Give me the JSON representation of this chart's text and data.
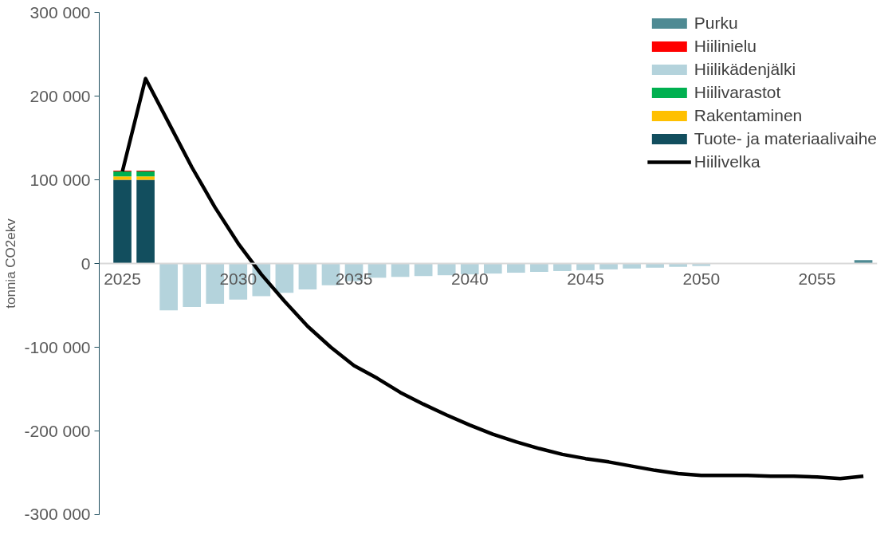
{
  "chart_data": {
    "type": "bar",
    "stacked": true,
    "ylabel": "tonnia CO2ekv",
    "categories": [
      "2025",
      null,
      null,
      null,
      null,
      "2030",
      null,
      null,
      null,
      null,
      "2035",
      null,
      null,
      null,
      null,
      "2040",
      null,
      null,
      null,
      null,
      "2045",
      null,
      null,
      null,
      null,
      "2050",
      null,
      null,
      null,
      null,
      "2055",
      null,
      null
    ],
    "ylim": [
      -300000,
      300000
    ],
    "yticks": [
      {
        "value": -300000,
        "label": "-300 000"
      },
      {
        "value": -200000,
        "label": "-200 000"
      },
      {
        "value": -100000,
        "label": "-100 000"
      },
      0,
      {
        "value": 100000,
        "label": "100 000"
      },
      {
        "value": 200000,
        "label": "200 000"
      },
      {
        "value": 300000,
        "label": "300 000"
      }
    ],
    "grid": false,
    "legend": "top right",
    "series": [
      {
        "name": "Tuote- ja materiaalivaihe",
        "color": "#124e5e",
        "values": [
          100000,
          100000,
          null,
          null,
          null,
          null,
          null,
          null,
          null,
          null,
          null,
          null,
          null,
          null,
          null,
          null,
          null,
          null,
          null,
          null,
          null,
          null,
          null,
          null,
          null,
          null,
          null,
          null,
          null,
          null,
          null,
          null,
          null
        ]
      },
      {
        "name": "Rakentaminen",
        "color": "#ffc000",
        "values": [
          4000,
          4000,
          null,
          null,
          null,
          null,
          null,
          null,
          null,
          null,
          null,
          null,
          null,
          null,
          null,
          null,
          null,
          null,
          null,
          null,
          null,
          null,
          null,
          null,
          null,
          null,
          null,
          null,
          null,
          null,
          null,
          null,
          null
        ]
      },
      {
        "name": "Hiilivarastot",
        "color": "#00b050",
        "values": [
          6000,
          6000,
          null,
          null,
          null,
          null,
          null,
          null,
          null,
          null,
          null,
          null,
          null,
          null,
          null,
          null,
          null,
          null,
          null,
          null,
          null,
          null,
          null,
          null,
          null,
          null,
          null,
          null,
          null,
          null,
          null,
          null,
          null
        ]
      },
      {
        "name": "Hiilikädenjälki",
        "color": "#b4d3dc",
        "values": [
          null,
          null,
          -56000,
          -52000,
          -48000,
          -43000,
          -39000,
          -35000,
          -31000,
          -26000,
          -21000,
          -17000,
          -16000,
          -15000,
          -14000,
          -13000,
          -12000,
          -11000,
          -10000,
          -9000,
          -8000,
          -7000,
          -6000,
          -5000,
          -4000,
          -3000,
          null,
          null,
          null,
          null,
          null,
          null,
          null
        ]
      },
      {
        "name": "Hiilinielu",
        "color": "#ff0000",
        "values": [
          1000,
          1000,
          null,
          null,
          null,
          null,
          null,
          null,
          null,
          null,
          null,
          null,
          null,
          null,
          null,
          null,
          null,
          null,
          null,
          null,
          null,
          null,
          null,
          null,
          null,
          null,
          null,
          null,
          null,
          null,
          null,
          null,
          null
        ]
      },
      {
        "name": "Purku",
        "color": "#4e8a93",
        "values": [
          null,
          null,
          null,
          null,
          null,
          null,
          null,
          null,
          null,
          null,
          null,
          null,
          null,
          null,
          null,
          null,
          null,
          null,
          null,
          null,
          null,
          null,
          null,
          null,
          null,
          null,
          null,
          null,
          null,
          null,
          null,
          null,
          4000
        ]
      },
      {
        "name": "Hiilivelka",
        "type": "line",
        "color": "#000000",
        "values": [
          110000,
          221000,
          168000,
          115000,
          67000,
          24000,
          -13000,
          -45000,
          -75000,
          -100000,
          -122000,
          -137000,
          -154000,
          -168000,
          -181000,
          -193000,
          -204000,
          -213000,
          -221000,
          -228000,
          -233000,
          -237000,
          -242000,
          -247000,
          -251000,
          -253000,
          -253000,
          -253000,
          -254000,
          -254000,
          -255000,
          -257000,
          -254000
        ]
      }
    ]
  }
}
